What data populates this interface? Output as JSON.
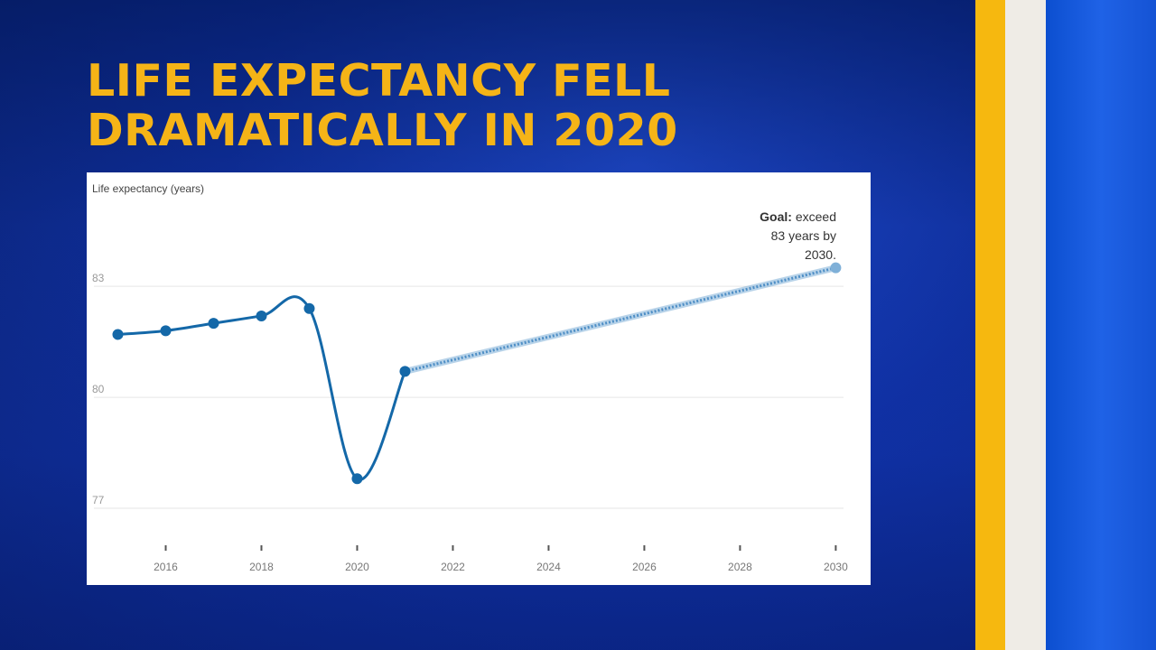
{
  "title": {
    "line1": "LIFE EXPECTANCY FELL",
    "line2": "DRAMATICALLY IN 2020"
  },
  "colors": {
    "title": "#f5b417",
    "series": "#1468a8",
    "projection": "#7fb0d8",
    "stripe_gold": "#f6b80f",
    "stripe_cream": "#efece6"
  },
  "chart_data": {
    "type": "line",
    "ylabel": "Life expectancy (years)",
    "xlim": [
      2014.5,
      2030.2
    ],
    "ylim": [
      76,
      84.2
    ],
    "x_ticks": [
      2016,
      2018,
      2020,
      2022,
      2024,
      2026,
      2028,
      2030
    ],
    "x_tick_labels": [
      "2016",
      "2018",
      "2020",
      "2022",
      "2024",
      "2026",
      "2028",
      "2030"
    ],
    "y_ticks": [
      77,
      80,
      83
    ],
    "y_tick_labels": [
      "77",
      "80",
      "83"
    ],
    "series": [
      {
        "name": "Life expectancy",
        "x": [
          2015,
          2016,
          2017,
          2018,
          2019,
          2020,
          2021
        ],
        "values": [
          81.7,
          81.8,
          82.0,
          82.2,
          82.4,
          77.8,
          80.7
        ]
      },
      {
        "name": "Goal projection",
        "style": "dotted",
        "x": [
          2021,
          2030
        ],
        "values": [
          80.7,
          83.5
        ]
      }
    ],
    "annotation": {
      "bold": "Goal:",
      "line1": "exceed",
      "line2": "83 years by",
      "line3": "2030."
    }
  }
}
